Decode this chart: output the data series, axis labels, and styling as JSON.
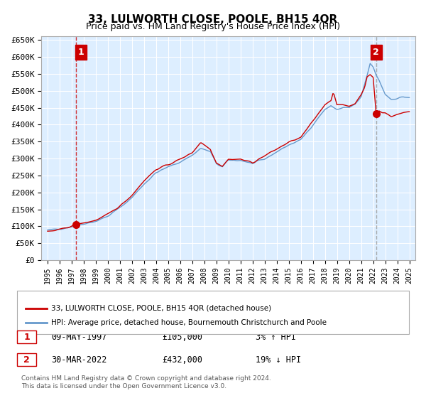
{
  "title": "33, LULWORTH CLOSE, POOLE, BH15 4QR",
  "subtitle": "Price paid vs. HM Land Registry's House Price Index (HPI)",
  "legend_line1": "33, LULWORTH CLOSE, POOLE, BH15 4QR (detached house)",
  "legend_line2": "HPI: Average price, detached house, Bournemouth Christchurch and Poole",
  "footnote": "Contains HM Land Registry data © Crown copyright and database right 2024.\nThis data is licensed under the Open Government Licence v3.0.",
  "sale1_date": "09-MAY-1997",
  "sale1_price": 105000,
  "sale1_label": "3% ↑ HPI",
  "sale2_date": "30-MAR-2022",
  "sale2_price": 432000,
  "sale2_label": "19% ↓ HPI",
  "ylim": [
    0,
    660000
  ],
  "yticks": [
    0,
    50000,
    100000,
    150000,
    200000,
    250000,
    300000,
    350000,
    400000,
    450000,
    500000,
    550000,
    600000,
    650000
  ],
  "ytick_labels": [
    "£0",
    "£50K",
    "£100K",
    "£150K",
    "£200K",
    "£250K",
    "£300K",
    "£350K",
    "£400K",
    "£450K",
    "£500K",
    "£550K",
    "£600K",
    "£650K"
  ],
  "xtick_years": [
    "1995",
    "1996",
    "1997",
    "1998",
    "1999",
    "2000",
    "2001",
    "2002",
    "2003",
    "2004",
    "2005",
    "2006",
    "2007",
    "2008",
    "2009",
    "2010",
    "2011",
    "2012",
    "2013",
    "2014",
    "2015",
    "2016",
    "2017",
    "2018",
    "2019",
    "2020",
    "2021",
    "2022",
    "2023",
    "2024",
    "2025"
  ],
  "hpi_color": "#6699cc",
  "price_color": "#cc0000",
  "vline1_color": "#cc0000",
  "vline2_color": "#999999",
  "background_color": "#ddeeff",
  "plot_bg_color": "#ddeeff",
  "sale1_year": 1997.36,
  "sale2_year": 2022.25,
  "annotation_box_color": "#cc0000",
  "annotation_text_color": "#ffffff"
}
